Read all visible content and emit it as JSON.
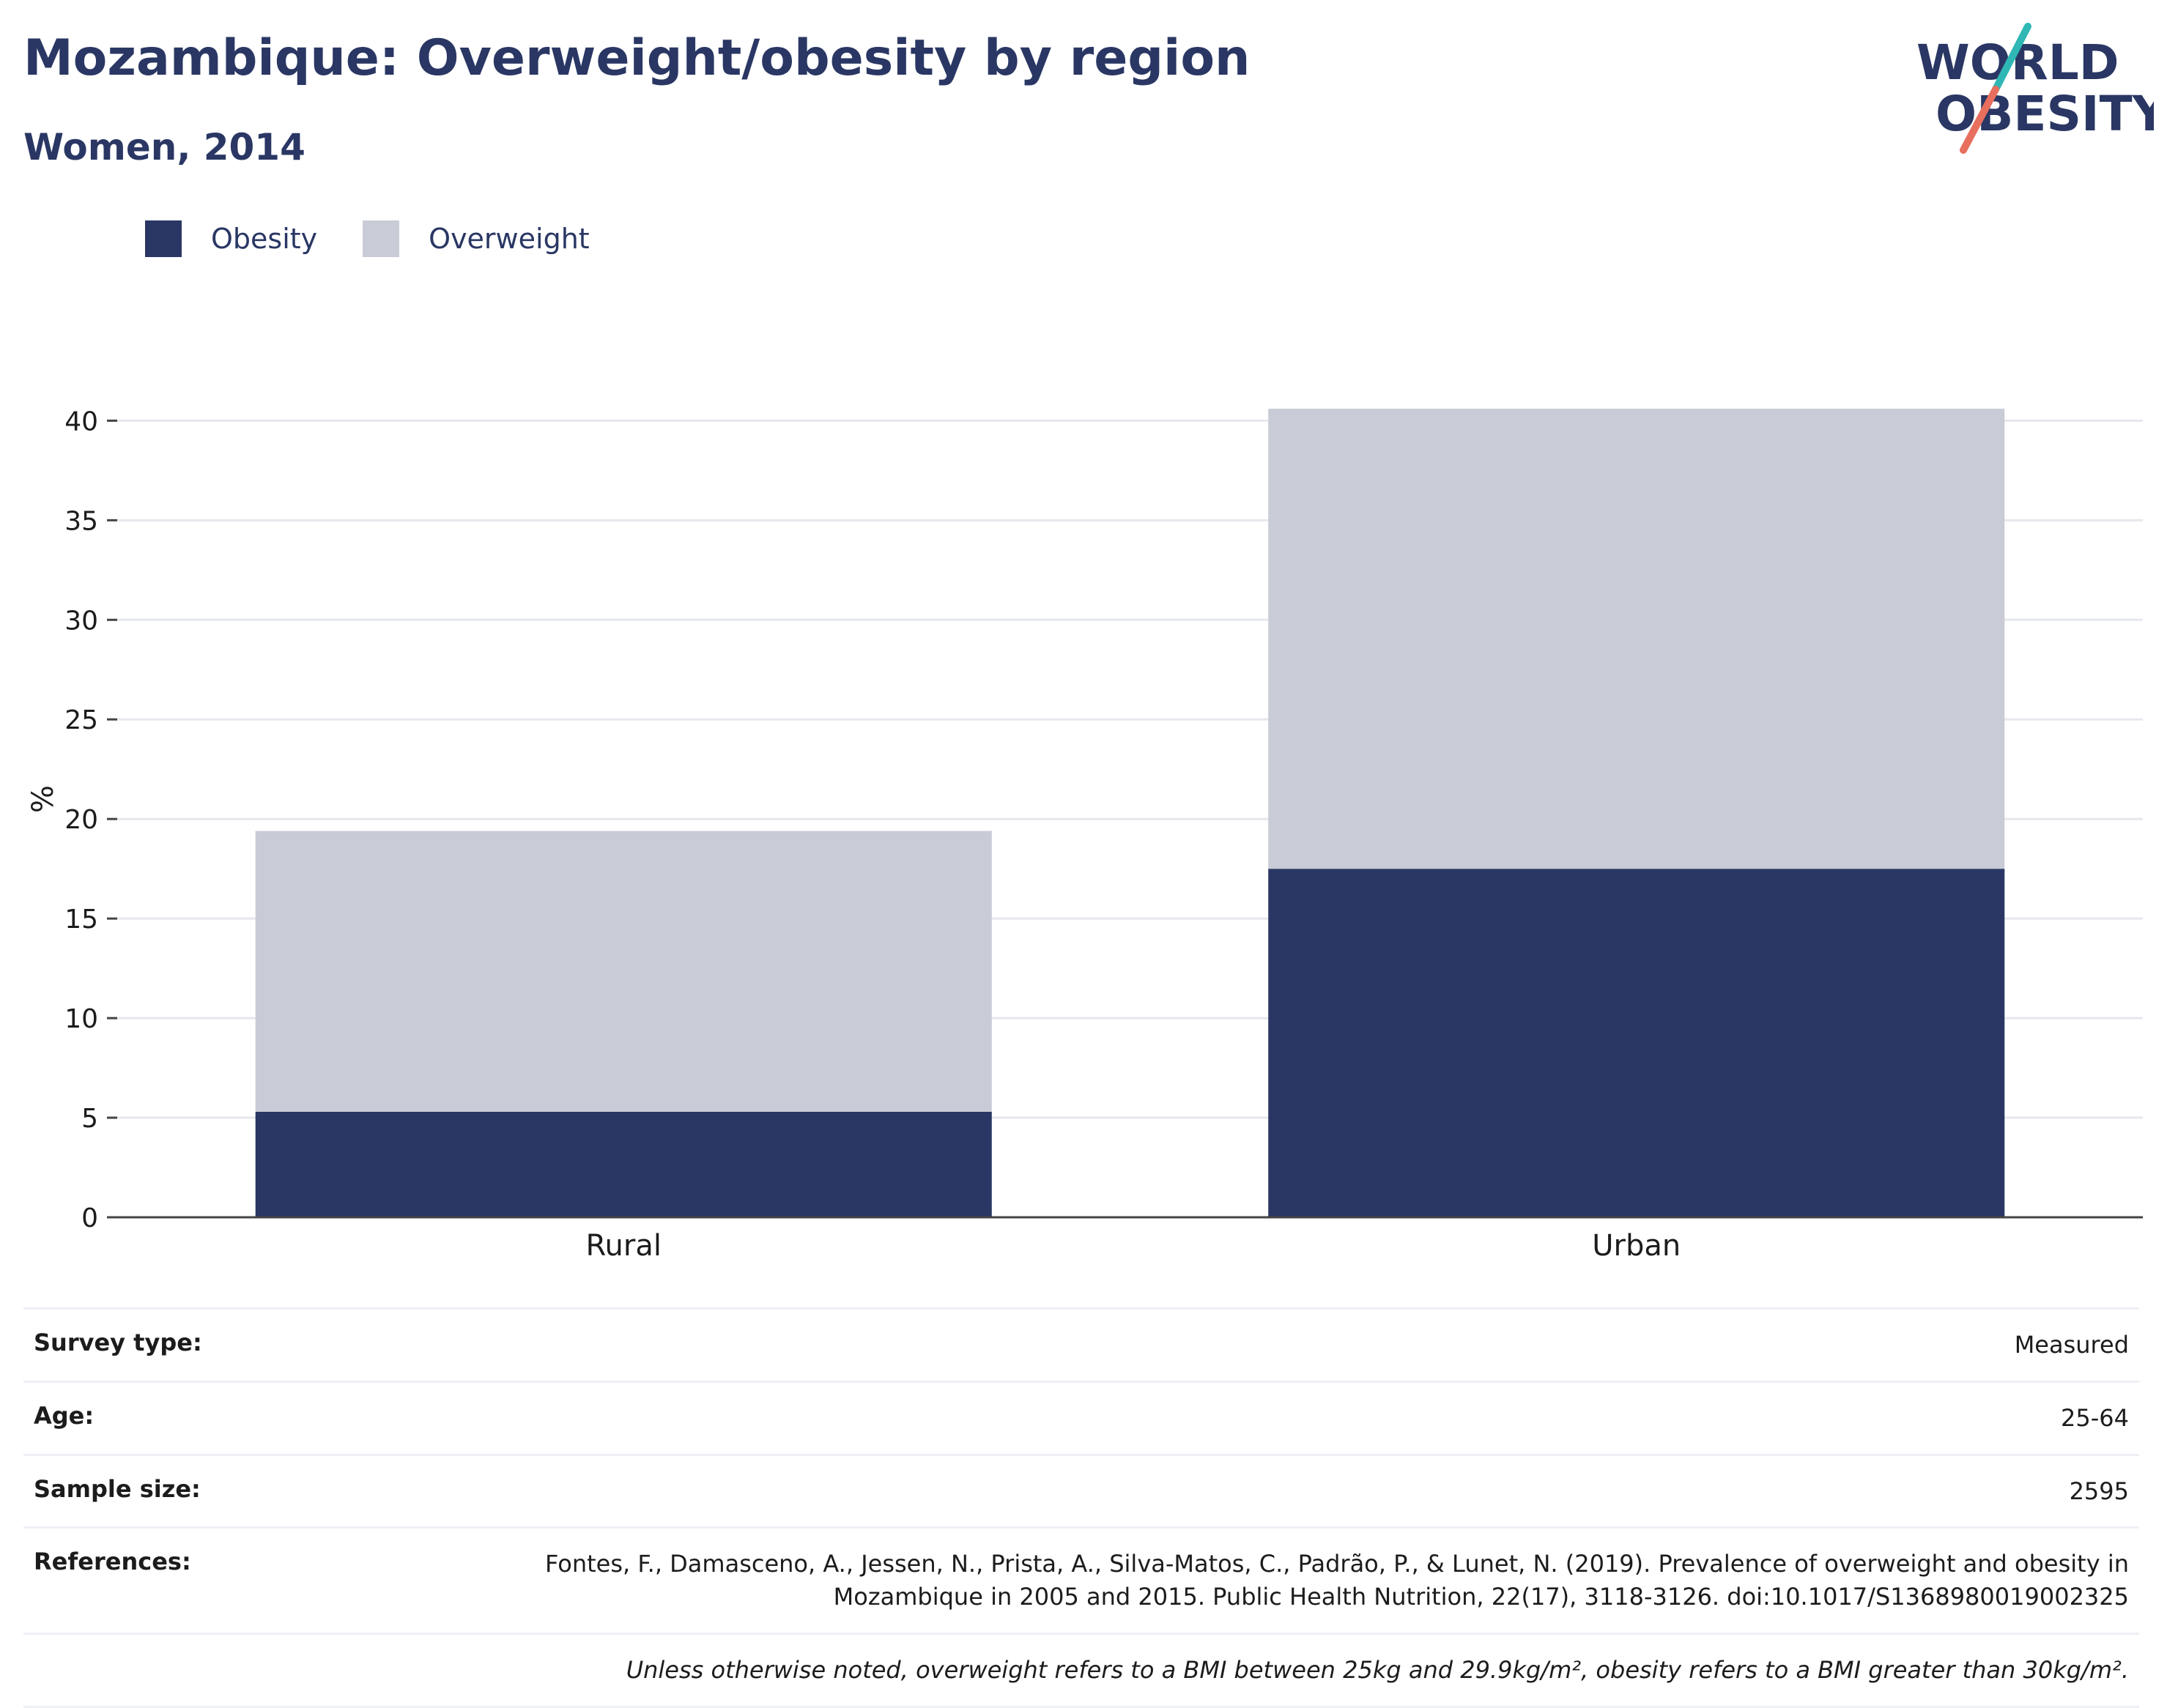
{
  "header": {
    "title": "Mozambique: Overweight/obesity by region",
    "subtitle": "Women, 2014"
  },
  "logo": {
    "line1": "WORLD",
    "line2": "OBESITY",
    "colors": {
      "text": "#2a3764",
      "teal": "#2fb7b5",
      "coral": "#e86f5e"
    }
  },
  "colors": {
    "obesity": "#2a3764",
    "overweight": "#c9cbd6",
    "grid": "#e6e8ee",
    "axis": "#444444"
  },
  "chart_data": {
    "type": "bar",
    "stacked": true,
    "categories": [
      "Rural",
      "Urban"
    ],
    "series": [
      {
        "name": "Obesity",
        "values": [
          5.3,
          17.5
        ],
        "color": "#2a3764"
      },
      {
        "name": "Overweight",
        "values": [
          14.1,
          23.1
        ],
        "color": "#c9cbd6"
      }
    ],
    "title": "Mozambique: Overweight/obesity by region",
    "subtitle": "Women, 2014",
    "ylabel": "%",
    "xlabel": "",
    "ylim": [
      0,
      42
    ],
    "yticks": [
      0,
      5,
      10,
      15,
      20,
      25,
      30,
      35,
      40
    ],
    "grid": true,
    "legend": "top-left"
  },
  "info": {
    "survey_type": {
      "label": "Survey type:",
      "value": "Measured"
    },
    "age": {
      "label": "Age:",
      "value": "25-64"
    },
    "sample_size": {
      "label": "Sample size:",
      "value": "2595"
    },
    "references": {
      "label": "References:",
      "value": "Fontes, F., Damasceno, A., Jessen, N., Prista, A., Silva-Matos, C., Padrão, P., & Lunet, N. (2019). Prevalence of overweight and obesity in Mozambique in 2005 and 2015. Public Health Nutrition, 22(17), 3118-3126. doi:10.1017/S1368980019002325"
    },
    "note": "Unless otherwise noted, overweight refers to a BMI between 25kg and 29.9kg/m², obesity refers to a BMI greater than 30kg/m²."
  }
}
